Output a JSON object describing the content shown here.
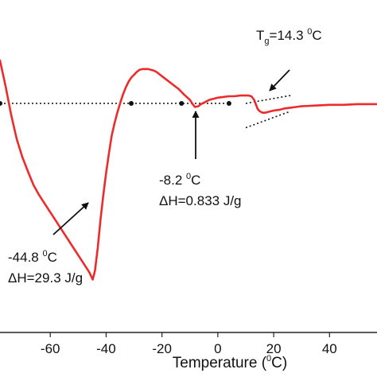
{
  "chart_data": {
    "type": "line",
    "title": "",
    "ylabel": "",
    "xlabel_parts": {
      "before": "Temperature (",
      "sup": "0",
      "after": "C)"
    },
    "xlim": [
      -78,
      57
    ],
    "ylim": [
      -3.2,
      1.0
    ],
    "x_ticks": [
      -60,
      -40,
      -20,
      0,
      20,
      40
    ],
    "x_tick_labels": [
      "-60",
      "-40",
      "-20",
      "0",
      "20",
      "40"
    ],
    "grid": false,
    "legend": "none",
    "series": [
      {
        "color": "#ee2b2b",
        "x": [
          -78,
          -76,
          -74,
          -72,
          -70,
          -68,
          -66,
          -64,
          -62,
          -60,
          -58,
          -56,
          -54,
          -52,
          -50,
          -48,
          -46,
          -44.8,
          -44,
          -43,
          -42,
          -41,
          -40,
          -39,
          -38,
          -37,
          -36,
          -35,
          -34,
          -33,
          -32,
          -31,
          -30,
          -29,
          -28,
          -27,
          -26,
          -25,
          -24,
          -23,
          -22,
          -20,
          -18,
          -16,
          -14,
          -12,
          -10,
          -9,
          -8.2,
          -7,
          -6,
          -5,
          -4,
          -3,
          -2,
          -1,
          0,
          2,
          4,
          6,
          8,
          10,
          11,
          12,
          13,
          14,
          14.3,
          15,
          16,
          17,
          18,
          20,
          22,
          24,
          26,
          28,
          30,
          35,
          40,
          45,
          50,
          55,
          57
        ],
        "y": [
          0.6,
          0.24,
          -0.16,
          -0.5,
          -0.75,
          -0.95,
          -1.14,
          -1.28,
          -1.4,
          -1.52,
          -1.64,
          -1.76,
          -1.88,
          -2.0,
          -2.12,
          -2.24,
          -2.36,
          -2.46,
          -2.34,
          -2.02,
          -1.62,
          -1.28,
          -0.97,
          -0.7,
          -0.45,
          -0.28,
          -0.13,
          0.0,
          0.12,
          0.22,
          0.3,
          0.36,
          0.4,
          0.44,
          0.47,
          0.48,
          0.48,
          0.48,
          0.47,
          0.46,
          0.44,
          0.38,
          0.32,
          0.26,
          0.2,
          0.12,
          0.05,
          -0.01,
          -0.05,
          -0.04,
          -0.01,
          0.01,
          0.03,
          0.05,
          0.06,
          0.07,
          0.08,
          0.09,
          0.1,
          0.1,
          0.11,
          0.11,
          0.11,
          0.1,
          0.05,
          -0.05,
          -0.08,
          -0.11,
          -0.13,
          -0.13,
          -0.12,
          -0.1,
          -0.09,
          -0.07,
          -0.06,
          -0.05,
          -0.04,
          -0.03,
          -0.02,
          -0.02,
          -0.01,
          -0.01,
          -0.01
        ]
      }
    ],
    "baseline_dots": {
      "x": [
        -78,
        -31,
        -13,
        4
      ],
      "y": [
        0.0,
        0.0,
        0.0,
        0.0
      ]
    },
    "tg_tangents": [
      {
        "x": [
          10,
          26
        ],
        "y": [
          0.0,
          0.11
        ]
      },
      {
        "x": [
          10,
          26
        ],
        "y": [
          -0.34,
          -0.11
        ]
      }
    ],
    "annotations": {
      "peak1": {
        "line1_before": "-44.8 ",
        "line1_sup": "0",
        "line1_after": "C",
        "line2": "ΔH=29.3 J/g"
      },
      "peak2": {
        "line1": "-8.2 ",
        "line1_sup": "0",
        "line1_after": "C",
        "line2": "ΔH=0.833 J/g"
      },
      "tg": {
        "base": "T",
        "sub": "g",
        "middle": "=14.3 ",
        "sup": "0",
        "after": "C"
      }
    }
  }
}
